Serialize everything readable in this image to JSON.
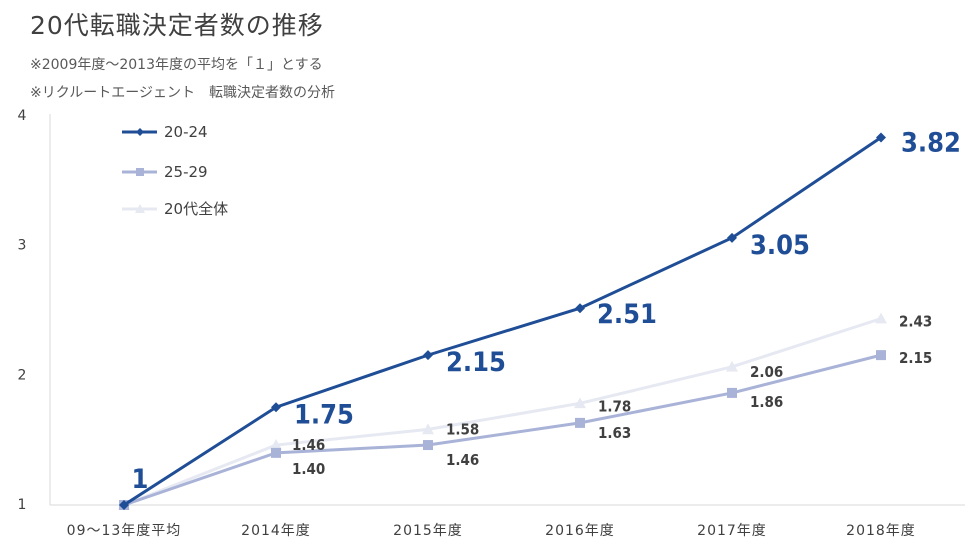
{
  "header": {
    "title": "20代転職決定者数の推移",
    "note1": "※2009年度〜2013年度の平均を「１」とする",
    "note2": "※リクルートエージェント　転職決定者数の分析"
  },
  "chart_data": {
    "type": "line",
    "categories": [
      "09〜13年度平均",
      "2014年度",
      "2015年度",
      "2016年度",
      "2017年度",
      "2018年度"
    ],
    "ylim": [
      1,
      4
    ],
    "yticks": [
      "1",
      "2",
      "3",
      "4"
    ],
    "grid": false,
    "legend_position": "top-left",
    "series": [
      {
        "name": "20-24",
        "values": [
          1,
          1.75,
          2.15,
          2.51,
          3.05,
          3.82
        ],
        "labels": [
          "1",
          "1.75",
          "2.15",
          "2.51",
          "3.05",
          "3.82"
        ],
        "color": "#1f4e96",
        "marker": "diamond"
      },
      {
        "name": "25-29",
        "values": [
          1,
          1.4,
          1.46,
          1.63,
          1.86,
          2.15
        ],
        "labels": [
          "",
          "1.40",
          "1.46",
          "1.63",
          "1.86",
          "2.15"
        ],
        "color": "#a9b3d8",
        "marker": "square"
      },
      {
        "name": "20代全体",
        "values": [
          1,
          1.46,
          1.58,
          1.78,
          2.06,
          2.43
        ],
        "labels": [
          "",
          "1.46",
          "1.58",
          "1.78",
          "2.06",
          "2.43"
        ],
        "color": "#e6e9f2",
        "marker": "triangle"
      }
    ]
  }
}
